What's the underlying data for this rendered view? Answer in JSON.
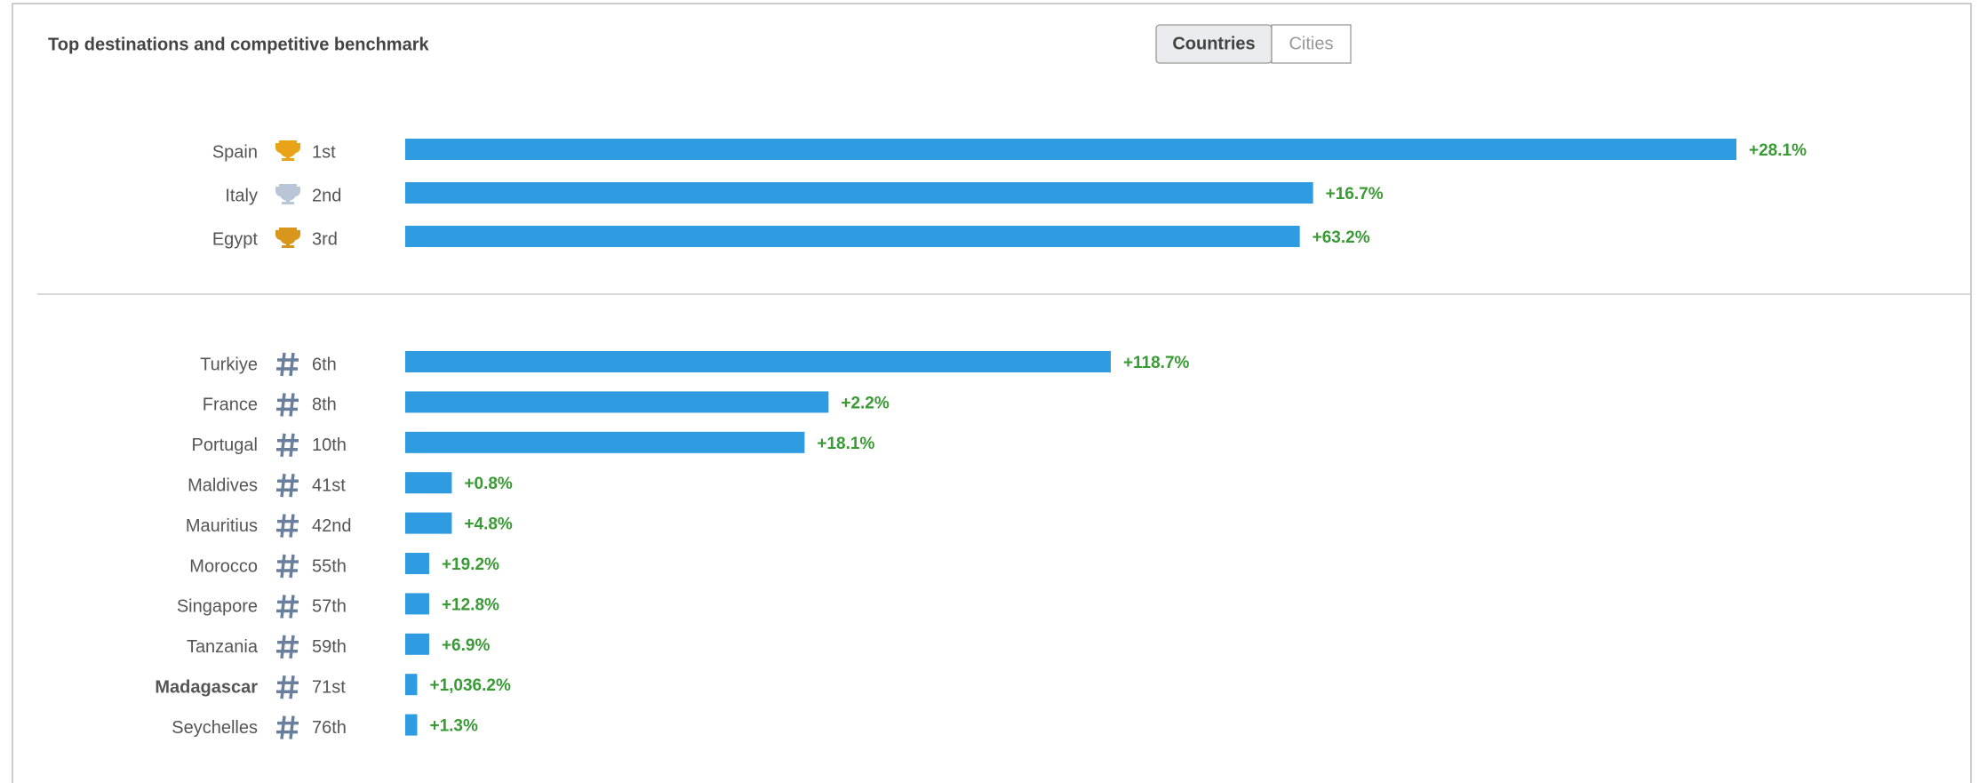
{
  "title": "Top destinations and competitive benchmark",
  "tabs": [
    "Countries",
    "Cities"
  ],
  "active_tab": 0,
  "chart_data": {
    "type": "bar",
    "color": "#2f9be0",
    "groups": [
      {
        "icon": "trophy",
        "icon_colors": [
          "#e8a317",
          "#b9c6d8",
          "#d9961c"
        ],
        "categories": [
          "Spain",
          "Italy",
          "Egypt"
        ],
        "ranks": [
          "1st",
          "2nd",
          "3rd"
        ],
        "values": [
          100,
          68.2,
          67.2
        ],
        "changes": [
          "+28.1%",
          "+16.7%",
          "+63.2%"
        ]
      },
      {
        "icon": "hash",
        "icon_colors": [
          "#6a7f9c"
        ],
        "highlight": 8,
        "categories": [
          "Turkiye",
          "France",
          "Portugal",
          "Maldives",
          "Mauritius",
          "Morocco",
          "Singapore",
          "Tanzania",
          "Madagascar",
          "Seychelles"
        ],
        "ranks": [
          "6th",
          "8th",
          "10th",
          "41st",
          "42nd",
          "55th",
          "57th",
          "59th",
          "71st",
          "76th"
        ],
        "values": [
          53,
          31.8,
          30,
          3.5,
          3.5,
          1.8,
          1.8,
          1.8,
          0.9,
          0.9
        ],
        "changes": [
          "+118.7%",
          "+2.2%",
          "+18.1%",
          "+0.8%",
          "+4.8%",
          "+19.2%",
          "+12.8%",
          "+6.9%",
          "+1,036.2%",
          "+1.3%"
        ]
      }
    ]
  }
}
